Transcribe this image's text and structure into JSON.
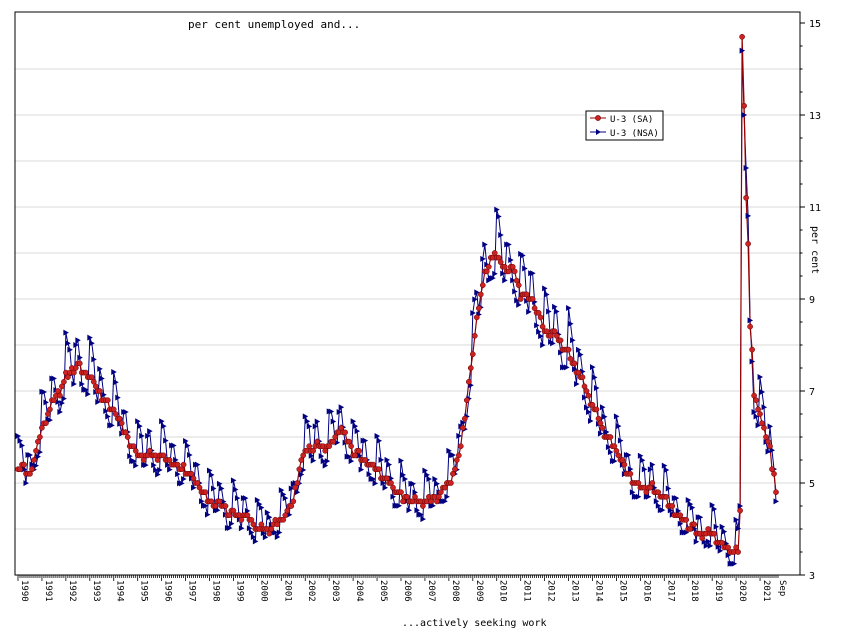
{
  "chart_data": {
    "type": "line",
    "title": "per cent unemployed and...",
    "xlabel": "...actively seeking work",
    "ylabel": "per cent",
    "ylim": [
      3,
      15
    ],
    "xlim": [
      1990.0,
      2021.75
    ],
    "y_ticks": [
      3,
      5,
      7,
      9,
      11,
      13,
      15
    ],
    "x_ticks": [
      {
        "year": 1990,
        "label": "1990"
      },
      {
        "year": 1991,
        "label": "1991"
      },
      {
        "year": 1992,
        "label": "1992"
      },
      {
        "year": 1993,
        "label": "1993"
      },
      {
        "year": 1994,
        "label": "1994"
      },
      {
        "year": 1995,
        "label": "1995"
      },
      {
        "year": 1996,
        "label": "1996"
      },
      {
        "year": 1997,
        "label": "1997"
      },
      {
        "year": 1998,
        "label": "1998"
      },
      {
        "year": 1999,
        "label": "1999"
      },
      {
        "year": 2000,
        "label": "2000"
      },
      {
        "year": 2001,
        "label": "2001"
      },
      {
        "year": 2002,
        "label": "2002"
      },
      {
        "year": 2003,
        "label": "2003"
      },
      {
        "year": 2004,
        "label": "2004"
      },
      {
        "year": 2005,
        "label": "2005"
      },
      {
        "year": 2006,
        "label": "2006"
      },
      {
        "year": 2007,
        "label": "2007"
      },
      {
        "year": 2008,
        "label": "2008"
      },
      {
        "year": 2009,
        "label": "2009"
      },
      {
        "year": 2010,
        "label": "2010"
      },
      {
        "year": 2011,
        "label": "2011"
      },
      {
        "year": 2012,
        "label": "2012"
      },
      {
        "year": 2013,
        "label": "2013"
      },
      {
        "year": 2014,
        "label": "2014"
      },
      {
        "year": 2015,
        "label": "2015"
      },
      {
        "year": 2016,
        "label": "2016"
      },
      {
        "year": 2017,
        "label": "2017"
      },
      {
        "year": 2018,
        "label": "2018"
      },
      {
        "year": 2019,
        "label": "2019"
      },
      {
        "year": 2020,
        "label": "2020"
      },
      {
        "year": 2021,
        "label": "2021"
      },
      {
        "year": 2021.67,
        "label": "Sep"
      }
    ],
    "grid": true,
    "legend_position": "top-right",
    "colors": {
      "sa": "#990000",
      "sa_marker": "#cc2222",
      "nsa": "#000080"
    },
    "series": [
      {
        "name": "U-3 (SA)",
        "key": "sa",
        "anchors": [
          [
            1990.0,
            5.4
          ],
          [
            1990.5,
            5.2
          ],
          [
            1990.75,
            5.7
          ],
          [
            1991.0,
            6.2
          ],
          [
            1991.5,
            6.8
          ],
          [
            1991.75,
            7.0
          ],
          [
            1992.0,
            7.3
          ],
          [
            1992.5,
            7.6
          ],
          [
            1992.75,
            7.4
          ],
          [
            1993.0,
            7.3
          ],
          [
            1993.5,
            6.9
          ],
          [
            1993.75,
            6.7
          ],
          [
            1994.0,
            6.6
          ],
          [
            1994.5,
            6.1
          ],
          [
            1994.75,
            5.8
          ],
          [
            1995.0,
            5.6
          ],
          [
            1995.5,
            5.6
          ],
          [
            1996.0,
            5.6
          ],
          [
            1996.5,
            5.4
          ],
          [
            1997.0,
            5.3
          ],
          [
            1997.5,
            5.0
          ],
          [
            1998.0,
            4.6
          ],
          [
            1998.5,
            4.5
          ],
          [
            1999.0,
            4.3
          ],
          [
            1999.5,
            4.3
          ],
          [
            2000.0,
            4.0
          ],
          [
            2000.5,
            4.0
          ],
          [
            2001.0,
            4.2
          ],
          [
            2001.5,
            4.6
          ],
          [
            2001.75,
            5.3
          ],
          [
            2002.0,
            5.7
          ],
          [
            2002.5,
            5.8
          ],
          [
            2003.0,
            5.8
          ],
          [
            2003.5,
            6.2
          ],
          [
            2004.0,
            5.7
          ],
          [
            2004.5,
            5.5
          ],
          [
            2005.0,
            5.3
          ],
          [
            2005.5,
            5.0
          ],
          [
            2006.0,
            4.7
          ],
          [
            2006.5,
            4.6
          ],
          [
            2007.0,
            4.6
          ],
          [
            2007.5,
            4.7
          ],
          [
            2008.0,
            5.0
          ],
          [
            2008.25,
            5.3
          ],
          [
            2008.5,
            5.8
          ],
          [
            2008.75,
            6.8
          ],
          [
            2009.0,
            7.8
          ],
          [
            2009.25,
            8.9
          ],
          [
            2009.5,
            9.5
          ],
          [
            2009.9,
            10.0
          ],
          [
            2010.3,
            9.7
          ],
          [
            2010.75,
            9.6
          ],
          [
            2011.0,
            9.1
          ],
          [
            2011.5,
            9.0
          ],
          [
            2012.0,
            8.3
          ],
          [
            2012.5,
            8.2
          ],
          [
            2013.0,
            7.8
          ],
          [
            2013.5,
            7.3
          ],
          [
            2014.0,
            6.7
          ],
          [
            2014.5,
            6.1
          ],
          [
            2015.0,
            5.7
          ],
          [
            2015.5,
            5.2
          ],
          [
            2016.0,
            4.9
          ],
          [
            2016.5,
            4.9
          ],
          [
            2017.0,
            4.7
          ],
          [
            2017.5,
            4.3
          ],
          [
            2018.0,
            4.1
          ],
          [
            2018.5,
            3.9
          ],
          [
            2019.0,
            3.9
          ],
          [
            2019.5,
            3.6
          ],
          [
            2019.92,
            3.5
          ],
          [
            2020.08,
            3.5
          ],
          [
            2020.17,
            4.4
          ],
          [
            2020.25,
            14.7
          ],
          [
            2020.33,
            13.3
          ],
          [
            2020.42,
            11.1
          ],
          [
            2020.5,
            10.2
          ],
          [
            2020.58,
            8.4
          ],
          [
            2020.67,
            7.9
          ],
          [
            2020.75,
            6.9
          ],
          [
            2020.92,
            6.7
          ],
          [
            2021.08,
            6.3
          ],
          [
            2021.25,
            6.0
          ],
          [
            2021.42,
            5.8
          ],
          [
            2021.5,
            5.4
          ],
          [
            2021.58,
            5.2
          ],
          [
            2021.67,
            4.8
          ]
        ]
      },
      {
        "name": "U-3 (NSA)",
        "key": "nsa",
        "seasonal": [
          0.7,
          0.6,
          0.4,
          -0.1,
          -0.2,
          0.4,
          0.4,
          0.1,
          -0.2,
          -0.3,
          -0.3,
          -0.3
        ],
        "amplitude_factor": 0.1,
        "overrides": [
          [
            2020.17,
            4.5
          ],
          [
            2020.25,
            14.4
          ],
          [
            2020.33,
            13.0
          ],
          [
            2021.67,
            4.6
          ]
        ]
      }
    ]
  }
}
